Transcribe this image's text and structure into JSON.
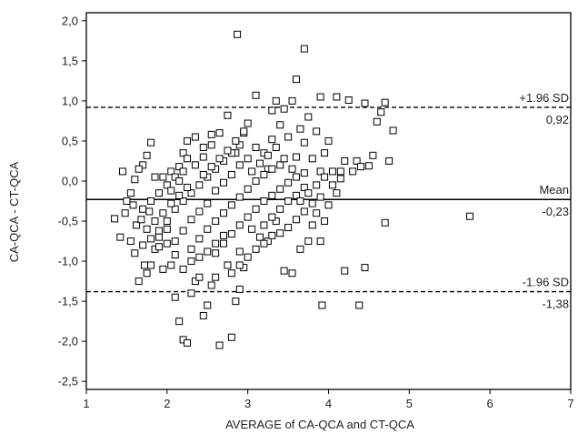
{
  "chart_data": {
    "type": "scatter",
    "title": "",
    "xlabel": "AVERAGE of CA-QCA and CT-QCA",
    "ylabel": "CA-QCA - CT-QCA",
    "xlim": [
      1,
      7
    ],
    "ylim": [
      -2.6,
      2.1
    ],
    "x_ticks": [
      1,
      2,
      3,
      4,
      5,
      6,
      7
    ],
    "x_tick_labels": [
      "1",
      "2",
      "3",
      "4",
      "5",
      "6",
      "7"
    ],
    "y_ticks": [
      2.0,
      1.5,
      1.0,
      0.5,
      0.0,
      -0.5,
      -1.0,
      -1.5,
      -2.0,
      -2.5
    ],
    "y_tick_labels": [
      "2,0",
      "1,5",
      "1,0",
      "0,5",
      "0,0",
      "-0,5",
      "-1,0",
      "-1,5",
      "-2,0",
      "-2,5"
    ],
    "grid": false,
    "marker": "hollow-square",
    "reference_lines": [
      {
        "value": 0.92,
        "style": "dashed",
        "label": "+1.96 SD",
        "value_label": "0,92"
      },
      {
        "value": -0.23,
        "style": "solid",
        "label": "Mean",
        "value_label": "-0,23"
      },
      {
        "value": -1.38,
        "style": "dashed",
        "label": "-1.96 SD",
        "value_label": "-1,38"
      }
    ],
    "points": [
      [
        2.87,
        1.83
      ],
      [
        3.7,
        1.65
      ],
      [
        3.6,
        1.27
      ],
      [
        3.1,
        1.07
      ],
      [
        3.35,
        1.0
      ],
      [
        3.45,
        0.9
      ],
      [
        3.3,
        0.88
      ],
      [
        3.55,
        1.0
      ],
      [
        3.9,
        1.05
      ],
      [
        4.1,
        1.05
      ],
      [
        4.25,
        1.01
      ],
      [
        4.45,
        0.97
      ],
      [
        4.65,
        0.86
      ],
      [
        4.7,
        0.98
      ],
      [
        4.8,
        0.63
      ],
      [
        4.55,
        0.32
      ],
      [
        4.6,
        0.74
      ],
      [
        4.35,
        0.25
      ],
      [
        4.4,
        0.18
      ],
      [
        4.5,
        0.19
      ],
      [
        4.75,
        0.25
      ],
      [
        4.0,
        0.5
      ],
      [
        4.2,
        0.25
      ],
      [
        4.05,
        0.12
      ],
      [
        3.95,
        0.35
      ],
      [
        4.15,
        0.03
      ],
      [
        4.3,
        0.12
      ],
      [
        3.85,
        0.62
      ],
      [
        3.75,
        0.8
      ],
      [
        3.65,
        0.65
      ],
      [
        3.7,
        0.48
      ],
      [
        3.8,
        0.28
      ],
      [
        3.9,
        0.12
      ],
      [
        3.6,
        0.3
      ],
      [
        3.5,
        0.55
      ],
      [
        3.4,
        0.7
      ],
      [
        3.3,
        0.52
      ],
      [
        3.2,
        0.35
      ],
      [
        3.25,
        0.15
      ],
      [
        3.1,
        0.42
      ],
      [
        3.0,
        0.72
      ],
      [
        2.95,
        0.6
      ],
      [
        2.85,
        0.35
      ],
      [
        2.75,
        0.82
      ],
      [
        2.65,
        0.6
      ],
      [
        2.55,
        0.45
      ],
      [
        2.45,
        0.3
      ],
      [
        2.35,
        0.55
      ],
      [
        2.25,
        0.5
      ],
      [
        2.2,
        0.35
      ],
      [
        2.15,
        0.18
      ],
      [
        2.05,
        0.12
      ],
      [
        1.95,
        0.05
      ],
      [
        1.85,
        0.05
      ],
      [
        1.75,
        0.32
      ],
      [
        1.7,
        0.2
      ],
      [
        1.65,
        0.15
      ],
      [
        1.8,
        0.48
      ],
      [
        1.55,
        -0.15
      ],
      [
        1.45,
        0.12
      ],
      [
        1.35,
        -0.47
      ],
      [
        1.42,
        -0.7
      ],
      [
        1.55,
        -0.75
      ],
      [
        1.62,
        -0.55
      ],
      [
        1.65,
        -1.25
      ],
      [
        1.72,
        -1.05
      ],
      [
        1.75,
        -1.15
      ],
      [
        1.8,
        -1.05
      ],
      [
        1.85,
        -0.85
      ],
      [
        1.9,
        -0.82
      ],
      [
        1.95,
        -1.1
      ],
      [
        2.05,
        -1.05
      ],
      [
        2.1,
        -1.45
      ],
      [
        2.15,
        -1.75
      ],
      [
        2.2,
        -1.98
      ],
      [
        2.25,
        -2.02
      ],
      [
        2.3,
        -1.4
      ],
      [
        2.35,
        -1.25
      ],
      [
        2.4,
        -1.2
      ],
      [
        2.45,
        -1.68
      ],
      [
        2.5,
        -1.55
      ],
      [
        2.55,
        -1.3
      ],
      [
        2.6,
        -1.2
      ],
      [
        2.65,
        -2.05
      ],
      [
        2.8,
        -1.95
      ],
      [
        2.75,
        -1.05
      ],
      [
        2.85,
        -1.5
      ],
      [
        2.9,
        -1.35
      ],
      [
        2.95,
        -1.08
      ],
      [
        2.9,
        -0.88
      ],
      [
        3.05,
        -0.6
      ],
      [
        3.15,
        -0.7
      ],
      [
        3.25,
        -0.75
      ],
      [
        3.35,
        -0.5
      ],
      [
        3.45,
        -1.12
      ],
      [
        3.55,
        -1.15
      ],
      [
        3.65,
        -0.85
      ],
      [
        3.75,
        -0.75
      ],
      [
        3.8,
        -0.55
      ],
      [
        3.9,
        -0.75
      ],
      [
        3.85,
        -0.4
      ],
      [
        3.95,
        -0.5
      ],
      [
        4.0,
        -0.3
      ],
      [
        4.1,
        -0.15
      ],
      [
        4.2,
        -1.12
      ],
      [
        4.45,
        -1.08
      ],
      [
        3.92,
        -1.55
      ],
      [
        4.38,
        -1.55
      ],
      [
        4.7,
        -0.52
      ],
      [
        5.75,
        -0.44
      ],
      [
        2.0,
        -0.5
      ],
      [
        2.1,
        -0.35
      ],
      [
        2.2,
        -0.25
      ],
      [
        2.3,
        -0.15
      ],
      [
        2.4,
        -0.05
      ],
      [
        2.5,
        0.05
      ],
      [
        2.6,
        0.15
      ],
      [
        2.7,
        0.25
      ],
      [
        2.8,
        0.35
      ],
      [
        2.9,
        0.45
      ],
      [
        1.9,
        -0.7
      ],
      [
        2.0,
        -0.6
      ],
      [
        2.1,
        -0.75
      ],
      [
        2.2,
        -0.62
      ],
      [
        2.3,
        -0.48
      ],
      [
        2.4,
        -0.38
      ],
      [
        2.5,
        -0.28
      ],
      [
        2.6,
        -0.12
      ],
      [
        2.7,
        -0.02
      ],
      [
        2.8,
        0.08
      ],
      [
        2.9,
        0.2
      ],
      [
        3.0,
        0.28
      ],
      [
        2.3,
        -0.85
      ],
      [
        2.4,
        -0.72
      ],
      [
        2.5,
        -0.6
      ],
      [
        2.6,
        -0.5
      ],
      [
        2.7,
        -0.4
      ],
      [
        2.8,
        -0.3
      ],
      [
        2.9,
        -0.2
      ],
      [
        3.0,
        -0.1
      ],
      [
        3.1,
        0.0
      ],
      [
        3.2,
        0.08
      ],
      [
        3.3,
        0.15
      ],
      [
        3.4,
        0.2
      ],
      [
        2.6,
        -0.9
      ],
      [
        2.7,
        -0.78
      ],
      [
        2.8,
        -0.66
      ],
      [
        2.9,
        -0.55
      ],
      [
        3.0,
        -0.45
      ],
      [
        3.1,
        -0.35
      ],
      [
        3.2,
        -0.25
      ],
      [
        3.3,
        -0.18
      ],
      [
        3.4,
        -0.1
      ],
      [
        3.5,
        -0.02
      ],
      [
        3.6,
        0.05
      ],
      [
        3.7,
        0.1
      ],
      [
        1.7,
        -0.35
      ],
      [
        1.8,
        -0.25
      ],
      [
        1.9,
        -0.15
      ],
      [
        2.0,
        -0.05
      ],
      [
        2.1,
        0.05
      ],
      [
        2.2,
        0.12
      ],
      [
        1.75,
        -0.6
      ],
      [
        1.85,
        -0.5
      ],
      [
        1.95,
        -0.4
      ],
      [
        2.05,
        -0.28
      ],
      [
        2.15,
        -0.18
      ],
      [
        2.25,
        -0.08
      ],
      [
        3.2,
        -0.55
      ],
      [
        3.3,
        -0.45
      ],
      [
        3.4,
        -0.35
      ],
      [
        3.5,
        -0.25
      ],
      [
        3.6,
        -0.18
      ],
      [
        3.7,
        -0.08
      ],
      [
        3.4,
        -0.65
      ],
      [
        3.5,
        -0.58
      ],
      [
        3.6,
        -0.48
      ],
      [
        3.7,
        -0.38
      ],
      [
        3.8,
        -0.28
      ],
      [
        3.9,
        -0.2
      ],
      [
        2.2,
        -1.1
      ],
      [
        2.3,
        -1.0
      ],
      [
        2.4,
        -0.95
      ],
      [
        2.5,
        -0.88
      ],
      [
        2.6,
        -0.78
      ],
      [
        2.7,
        -0.68
      ],
      [
        2.8,
        -1.15
      ],
      [
        2.9,
        -1.05
      ],
      [
        3.0,
        -0.95
      ],
      [
        3.1,
        -0.85
      ],
      [
        3.2,
        -0.78
      ],
      [
        3.3,
        -0.68
      ],
      [
        1.6,
        -0.9
      ],
      [
        1.7,
        -0.8
      ],
      [
        1.8,
        -0.72
      ],
      [
        1.9,
        -0.62
      ],
      [
        2.0,
        -0.78
      ],
      [
        2.1,
        -0.92
      ],
      [
        2.45,
        0.08
      ],
      [
        2.55,
        0.18
      ],
      [
        2.65,
        0.28
      ],
      [
        2.75,
        0.38
      ],
      [
        2.85,
        0.5
      ],
      [
        2.95,
        0.62
      ],
      [
        3.05,
        0.12
      ],
      [
        3.15,
        0.22
      ],
      [
        3.25,
        0.32
      ],
      [
        3.35,
        0.42
      ],
      [
        3.45,
        0.28
      ],
      [
        3.55,
        0.15
      ],
      [
        3.65,
        -0.25
      ],
      [
        3.75,
        -0.15
      ],
      [
        3.85,
        -0.05
      ],
      [
        3.95,
        0.05
      ],
      [
        4.05,
        -0.05
      ],
      [
        4.15,
        0.12
      ],
      [
        2.35,
        0.2
      ],
      [
        2.45,
        0.42
      ],
      [
        2.55,
        0.58
      ],
      [
        2.25,
        0.28
      ],
      [
        2.15,
        0.0
      ],
      [
        2.05,
        -0.12
      ],
      [
        1.6,
        0.02
      ],
      [
        1.5,
        -0.25
      ],
      [
        1.48,
        -0.4
      ],
      [
        1.58,
        -0.3
      ],
      [
        1.68,
        -0.48
      ],
      [
        1.78,
        -0.38
      ]
    ]
  }
}
